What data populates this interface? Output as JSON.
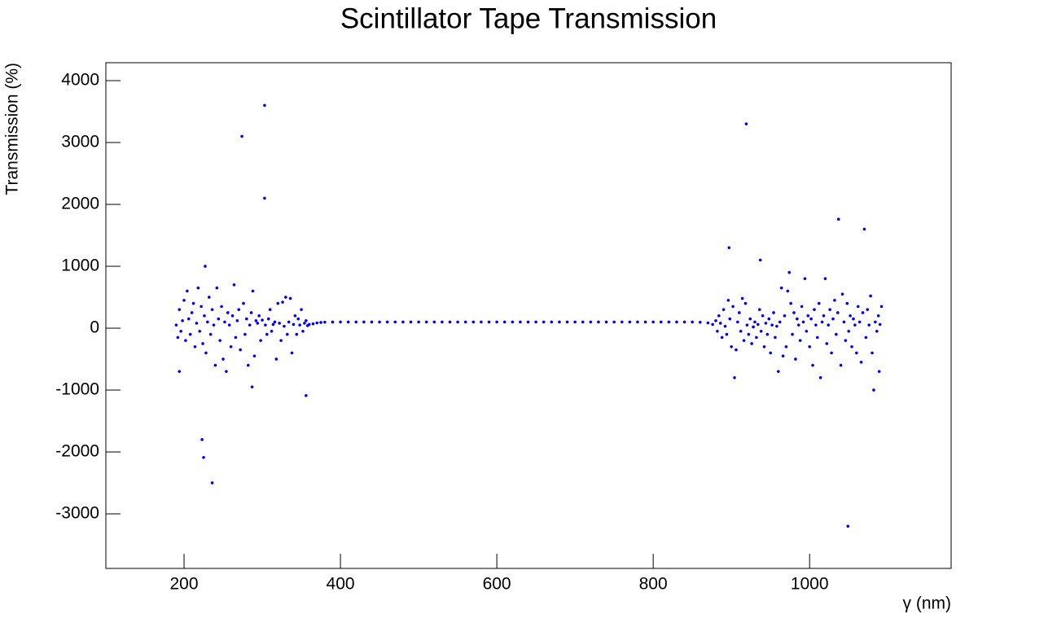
{
  "chart_data": {
    "type": "scatter",
    "title": "Scintillator Tape Transmission",
    "x_label": "γ (nm)",
    "y_label": "Transmission (%)",
    "color": "#0000ff",
    "xlim": [
      100,
      1181
    ],
    "ylim": [
      -3882,
      4289
    ],
    "xticks": [
      200,
      400,
      600,
      800,
      1000
    ],
    "yticks": [
      -3000,
      -2000,
      -1000,
      0,
      1000,
      2000,
      3000,
      4000
    ],
    "x": [
      190,
      192,
      194,
      196,
      198,
      200,
      202,
      204,
      206,
      208,
      210,
      212,
      214,
      216,
      218,
      220,
      222,
      224,
      226,
      228,
      230,
      232,
      234,
      236,
      238,
      240,
      242,
      244,
      246,
      248,
      250,
      252,
      254,
      256,
      258,
      260,
      262,
      264,
      266,
      268,
      270,
      272,
      276,
      278,
      280,
      282,
      284,
      286,
      288,
      290,
      292,
      294,
      296,
      298,
      300,
      304,
      306,
      308,
      310,
      312,
      314,
      316,
      318,
      320,
      322,
      324,
      326,
      328,
      330,
      332,
      334,
      336,
      338,
      340,
      342,
      344,
      346,
      348,
      350,
      352,
      354,
      356,
      358,
      360,
      365,
      370,
      375,
      380,
      390,
      400,
      410,
      420,
      430,
      440,
      450,
      460,
      470,
      480,
      490,
      500,
      510,
      520,
      530,
      540,
      550,
      560,
      570,
      580,
      590,
      600,
      610,
      620,
      630,
      640,
      650,
      660,
      670,
      680,
      690,
      700,
      710,
      720,
      730,
      740,
      750,
      760,
      770,
      780,
      790,
      800,
      810,
      820,
      830,
      840,
      850,
      860,
      870,
      876,
      880,
      882,
      884,
      886,
      888,
      890,
      892,
      894,
      896,
      898,
      900,
      902,
      906,
      908,
      910,
      912,
      914,
      916,
      918,
      920,
      922,
      924,
      926,
      928,
      930,
      932,
      934,
      936,
      938,
      940,
      942,
      944,
      946,
      948,
      950,
      952,
      954,
      956,
      958,
      960,
      962,
      964,
      966,
      968,
      970,
      972,
      976,
      978,
      980,
      982,
      984,
      986,
      988,
      990,
      992,
      994,
      996,
      998,
      1000,
      1002,
      1004,
      1006,
      1008,
      1010,
      1012,
      1014,
      1016,
      1018,
      1020,
      1022,
      1024,
      1026,
      1028,
      1030,
      1032,
      1034,
      1036,
      1040,
      1042,
      1044,
      1046,
      1048,
      1050,
      1052,
      1054,
      1056,
      1058,
      1060,
      1062,
      1064,
      1066,
      1068,
      1072,
      1074,
      1076,
      1078,
      1080,
      1084,
      1086,
      1088,
      1090,
      1092,
      303,
      274,
      303,
      227,
      223,
      225,
      236,
      194,
      287,
      356,
      919,
      897,
      937,
      1037,
      1070,
      1049,
      904,
      1082,
      1089,
      974
    ],
    "values": [
      50,
      -150,
      300,
      -50,
      120,
      450,
      -200,
      600,
      150,
      -100,
      250,
      400,
      -300,
      80,
      650,
      -50,
      350,
      -250,
      200,
      -400,
      100,
      500,
      -100,
      300,
      50,
      -600,
      650,
      150,
      -200,
      350,
      -500,
      100,
      -700,
      250,
      50,
      -300,
      200,
      700,
      -150,
      120,
      300,
      -350,
      400,
      -100,
      150,
      -600,
      50,
      250,
      600,
      -450,
      120,
      80,
      200,
      -200,
      130,
      50,
      -100,
      150,
      300,
      -50,
      60,
      100,
      -500,
      400,
      80,
      -200,
      420,
      30,
      500,
      -100,
      100,
      480,
      -400,
      60,
      200,
      -100,
      150,
      50,
      300,
      -50,
      80,
      120,
      40,
      60,
      70,
      85,
      92,
      96,
      99,
      100,
      100,
      100,
      100,
      100,
      100,
      100,
      100,
      100,
      100,
      100,
      100,
      100,
      100,
      100,
      100,
      100,
      100,
      100,
      100,
      100,
      100,
      100,
      100,
      100,
      100,
      100,
      100,
      100,
      100,
      100,
      100,
      100,
      100,
      100,
      100,
      100,
      100,
      100,
      100,
      100,
      100,
      100,
      100,
      100,
      100,
      95,
      85,
      60,
      120,
      -50,
      200,
      80,
      -150,
      300,
      30,
      -100,
      450,
      150,
      -300,
      350,
      -350,
      100,
      250,
      -50,
      480,
      -200,
      400,
      50,
      -100,
      150,
      -250,
      20,
      100,
      -150,
      60,
      300,
      -50,
      200,
      -300,
      80,
      -100,
      150,
      -400,
      50,
      250,
      -150,
      30,
      -700,
      100,
      650,
      -450,
      200,
      -300,
      600,
      400,
      -100,
      250,
      -500,
      150,
      50,
      -200,
      350,
      100,
      800,
      -50,
      200,
      -300,
      150,
      -600,
      300,
      50,
      -150,
      400,
      -800,
      100,
      200,
      800,
      -250,
      50,
      300,
      -400,
      150,
      450,
      -100,
      250,
      -600,
      550,
      100,
      -200,
      400,
      -50,
      200,
      -300,
      150,
      50,
      -400,
      350,
      100,
      -550,
      250,
      -150,
      300,
      50,
      520,
      -400,
      100,
      -50,
      200,
      60,
      350,
      3600,
      3100,
      2100,
      1000,
      -1800,
      -2090,
      -2500,
      -700,
      -950,
      -1090,
      3300,
      1300,
      1100,
      1760,
      1600,
      -3200,
      -800,
      -1000,
      -700,
      900
    ]
  }
}
